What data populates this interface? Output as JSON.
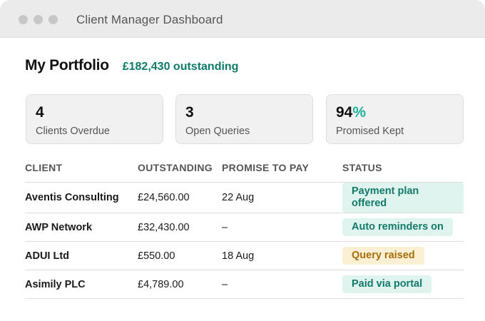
{
  "window": {
    "title": "Client Manager Dashboard"
  },
  "header": {
    "title": "My Portfolio",
    "outstanding_total": "£182,430 outstanding"
  },
  "cards": [
    {
      "value": "4",
      "label": "Clients Overdue"
    },
    {
      "value": "3",
      "label": "Open Queries"
    },
    {
      "value": "94",
      "value_suffix": "%",
      "label": "Promised Kept"
    }
  ],
  "table": {
    "headers": [
      "CLIENT",
      "OUTSTANDING",
      "PROMISE TO PAY",
      "STATUS"
    ],
    "rows": [
      {
        "client": "Aventis Consulting",
        "outstanding": "£24,560.00",
        "promise": "22 Aug",
        "status": "Payment plan offered",
        "status_color": "#137a68"
      },
      {
        "client": "AWP Network",
        "outstanding": "£32,430.00",
        "promise": "–",
        "status": "Auto reminders on",
        "status_color": "#137a68"
      },
      {
        "client": "ADUI Ltd",
        "outstanding": "£550.00",
        "promise": "18 Aug",
        "status": "Query raised",
        "status_color": "#a86d0a"
      },
      {
        "client": "Asimily PLC",
        "outstanding": "£4,789.00",
        "promise": "–",
        "status": "Paid via portal",
        "status_color": "#137a68"
      }
    ]
  },
  "colors": {
    "accent_teal": "#0f7a6a",
    "percent_accent": "#1fb39a",
    "status_green_bg": "#dff3ef",
    "status_amber_bg": "#fbf0d3"
  }
}
